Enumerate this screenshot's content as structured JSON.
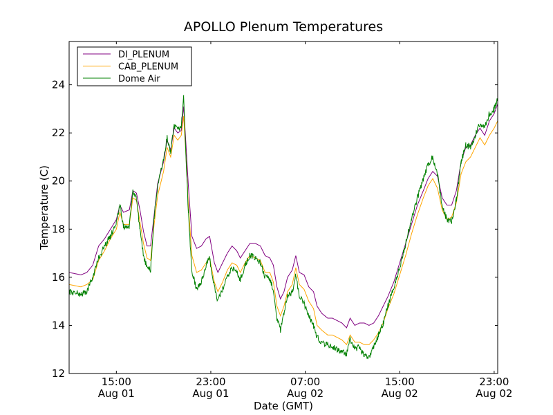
{
  "chart_data": {
    "type": "line",
    "title": "APOLLO Plenum Temperatures",
    "xlabel": "Date (GMT)",
    "ylabel": "Temperature (C)",
    "x_unit": "hours since Aug 01 11:00 GMT",
    "xlim": [
      0,
      36.3
    ],
    "ylim": [
      12,
      25.8
    ],
    "y_ticks": [
      12,
      14,
      16,
      18,
      20,
      22,
      24
    ],
    "x_ticks": [
      {
        "x": 4,
        "line1": "15:00",
        "line2": "Aug 01"
      },
      {
        "x": 12,
        "line1": "23:00",
        "line2": "Aug 01"
      },
      {
        "x": 20,
        "line1": "07:00",
        "line2": "Aug 02"
      },
      {
        "x": 28,
        "line1": "15:00",
        "line2": "Aug 02"
      },
      {
        "x": 36,
        "line1": "23:00",
        "line2": "Aug 02"
      }
    ],
    "legend_position": "top-left",
    "series": [
      {
        "name": "DI_PLENUM",
        "color": "#800080",
        "noise": 0,
        "points": [
          [
            0,
            16.2
          ],
          [
            1,
            16.1
          ],
          [
            1.5,
            16.2
          ],
          [
            2,
            16.5
          ],
          [
            2.5,
            17.3
          ],
          [
            3,
            17.6
          ],
          [
            3.5,
            18.0
          ],
          [
            4,
            18.4
          ],
          [
            4.3,
            19.0
          ],
          [
            4.6,
            18.7
          ],
          [
            5.1,
            18.8
          ],
          [
            5.4,
            19.6
          ],
          [
            5.7,
            19.5
          ],
          [
            6,
            18.8
          ],
          [
            6.3,
            17.9
          ],
          [
            6.6,
            17.3
          ],
          [
            6.9,
            17.3
          ],
          [
            7.2,
            18.6
          ],
          [
            7.5,
            19.9
          ],
          [
            8,
            20.8
          ],
          [
            8.3,
            21.7
          ],
          [
            8.6,
            21.3
          ],
          [
            8.9,
            22.2
          ],
          [
            9.2,
            22.0
          ],
          [
            9.5,
            22.1
          ],
          [
            9.7,
            23.1
          ],
          [
            9.9,
            21.5
          ],
          [
            10.1,
            19.8
          ],
          [
            10.4,
            17.7
          ],
          [
            10.8,
            17.2
          ],
          [
            11.2,
            17.3
          ],
          [
            11.6,
            17.6
          ],
          [
            11.9,
            17.7
          ],
          [
            12.3,
            16.6
          ],
          [
            12.6,
            16.2
          ],
          [
            13,
            16.6
          ],
          [
            13.4,
            17.0
          ],
          [
            13.8,
            17.3
          ],
          [
            14.2,
            17.1
          ],
          [
            14.5,
            16.8
          ],
          [
            14.9,
            17.1
          ],
          [
            15.3,
            17.4
          ],
          [
            15.8,
            17.4
          ],
          [
            16.2,
            17.3
          ],
          [
            16.6,
            16.9
          ],
          [
            17,
            16.8
          ],
          [
            17.3,
            16.5
          ],
          [
            17.6,
            15.6
          ],
          [
            17.9,
            15.1
          ],
          [
            18.2,
            15.4
          ],
          [
            18.5,
            16.0
          ],
          [
            18.9,
            16.3
          ],
          [
            19.2,
            16.9
          ],
          [
            19.5,
            16.2
          ],
          [
            19.9,
            16.1
          ],
          [
            20.3,
            15.6
          ],
          [
            20.7,
            15.4
          ],
          [
            21,
            14.8
          ],
          [
            21.4,
            14.5
          ],
          [
            21.9,
            14.3
          ],
          [
            22.3,
            14.3
          ],
          [
            22.7,
            14.2
          ],
          [
            23.1,
            14.1
          ],
          [
            23.5,
            13.9
          ],
          [
            23.8,
            14.3
          ],
          [
            24.2,
            14.0
          ],
          [
            24.6,
            14.1
          ],
          [
            25,
            14.1
          ],
          [
            25.4,
            14.0
          ],
          [
            25.8,
            14.1
          ],
          [
            26.2,
            14.4
          ],
          [
            26.6,
            14.8
          ],
          [
            27,
            15.2
          ],
          [
            27.5,
            15.8
          ],
          [
            28,
            16.6
          ],
          [
            28.5,
            17.4
          ],
          [
            29,
            18.2
          ],
          [
            29.5,
            19.0
          ],
          [
            30,
            19.6
          ],
          [
            30.4,
            20.1
          ],
          [
            30.8,
            20.4
          ],
          [
            31.2,
            20.2
          ],
          [
            31.6,
            19.3
          ],
          [
            32,
            19.0
          ],
          [
            32.4,
            19.0
          ],
          [
            32.8,
            19.6
          ],
          [
            33.2,
            20.8
          ],
          [
            33.6,
            21.4
          ],
          [
            34,
            21.5
          ],
          [
            34.4,
            21.9
          ],
          [
            34.8,
            22.2
          ],
          [
            35.2,
            21.9
          ],
          [
            35.6,
            22.5
          ],
          [
            36.0,
            22.8
          ],
          [
            36.3,
            23.2
          ]
        ]
      },
      {
        "name": "CAB_PLENUM",
        "color": "#ffa500",
        "noise": 0,
        "points": [
          [
            0,
            15.7
          ],
          [
            1,
            15.6
          ],
          [
            1.5,
            15.7
          ],
          [
            2,
            15.9
          ],
          [
            2.5,
            16.7
          ],
          [
            3,
            17.1
          ],
          [
            3.5,
            17.6
          ],
          [
            4,
            18.0
          ],
          [
            4.3,
            18.7
          ],
          [
            4.6,
            18.2
          ],
          [
            5.1,
            18.2
          ],
          [
            5.4,
            19.3
          ],
          [
            5.7,
            19.2
          ],
          [
            6,
            18.3
          ],
          [
            6.3,
            17.4
          ],
          [
            6.6,
            16.8
          ],
          [
            6.9,
            16.7
          ],
          [
            7.2,
            18.2
          ],
          [
            7.5,
            19.4
          ],
          [
            8,
            20.4
          ],
          [
            8.3,
            21.4
          ],
          [
            8.6,
            21.0
          ],
          [
            8.9,
            21.9
          ],
          [
            9.2,
            21.7
          ],
          [
            9.5,
            21.9
          ],
          [
            9.7,
            22.7
          ],
          [
            9.9,
            21.0
          ],
          [
            10.1,
            19.0
          ],
          [
            10.4,
            16.9
          ],
          [
            10.8,
            16.2
          ],
          [
            11.2,
            16.3
          ],
          [
            11.6,
            16.6
          ],
          [
            11.9,
            16.8
          ],
          [
            12.3,
            15.8
          ],
          [
            12.6,
            15.4
          ],
          [
            13,
            15.8
          ],
          [
            13.4,
            16.3
          ],
          [
            13.8,
            16.6
          ],
          [
            14.2,
            16.5
          ],
          [
            14.5,
            16.2
          ],
          [
            14.9,
            16.6
          ],
          [
            15.3,
            16.9
          ],
          [
            15.8,
            16.8
          ],
          [
            16.2,
            16.7
          ],
          [
            16.6,
            16.2
          ],
          [
            17,
            16.2
          ],
          [
            17.3,
            15.8
          ],
          [
            17.6,
            14.8
          ],
          [
            17.9,
            14.4
          ],
          [
            18.2,
            14.8
          ],
          [
            18.5,
            15.4
          ],
          [
            18.9,
            15.7
          ],
          [
            19.2,
            16.4
          ],
          [
            19.5,
            15.7
          ],
          [
            19.9,
            15.5
          ],
          [
            20.3,
            15.0
          ],
          [
            20.7,
            14.7
          ],
          [
            21,
            14.0
          ],
          [
            21.4,
            13.8
          ],
          [
            21.9,
            13.6
          ],
          [
            22.3,
            13.6
          ],
          [
            22.7,
            13.5
          ],
          [
            23.1,
            13.4
          ],
          [
            23.5,
            13.2
          ],
          [
            23.8,
            13.6
          ],
          [
            24.2,
            13.3
          ],
          [
            24.6,
            13.3
          ],
          [
            25,
            13.2
          ],
          [
            25.4,
            13.2
          ],
          [
            25.8,
            13.4
          ],
          [
            26.2,
            13.7
          ],
          [
            26.6,
            14.1
          ],
          [
            27,
            14.7
          ],
          [
            27.5,
            15.3
          ],
          [
            28,
            16.1
          ],
          [
            28.5,
            16.9
          ],
          [
            29,
            17.8
          ],
          [
            29.5,
            18.6
          ],
          [
            30,
            19.3
          ],
          [
            30.4,
            19.8
          ],
          [
            30.8,
            20.1
          ],
          [
            31.2,
            19.7
          ],
          [
            31.6,
            18.8
          ],
          [
            32,
            18.4
          ],
          [
            32.4,
            18.5
          ],
          [
            32.8,
            19.1
          ],
          [
            33.2,
            20.3
          ],
          [
            33.6,
            20.8
          ],
          [
            34,
            21.0
          ],
          [
            34.4,
            21.4
          ],
          [
            34.8,
            21.8
          ],
          [
            35.2,
            21.5
          ],
          [
            35.6,
            21.9
          ],
          [
            36.0,
            22.2
          ],
          [
            36.3,
            22.5
          ]
        ]
      },
      {
        "name": "Dome Air",
        "color": "#008000",
        "noise": 0.13,
        "points": [
          [
            0,
            15.4
          ],
          [
            1,
            15.3
          ],
          [
            1.5,
            15.4
          ],
          [
            2,
            16.0
          ],
          [
            2.5,
            16.8
          ],
          [
            3,
            17.3
          ],
          [
            3.5,
            17.7
          ],
          [
            4,
            18.3
          ],
          [
            4.3,
            19.0
          ],
          [
            4.6,
            18.1
          ],
          [
            5.1,
            18.1
          ],
          [
            5.4,
            19.6
          ],
          [
            5.7,
            19.3
          ],
          [
            6,
            17.9
          ],
          [
            6.3,
            16.9
          ],
          [
            6.6,
            16.4
          ],
          [
            6.9,
            16.3
          ],
          [
            7.2,
            18.5
          ],
          [
            7.5,
            19.8
          ],
          [
            8,
            20.9
          ],
          [
            8.3,
            21.8
          ],
          [
            8.6,
            21.2
          ],
          [
            8.9,
            22.3
          ],
          [
            9.2,
            22.1
          ],
          [
            9.5,
            22.3
          ],
          [
            9.7,
            23.5
          ],
          [
            9.9,
            21.0
          ],
          [
            10.1,
            18.7
          ],
          [
            10.4,
            16.2
          ],
          [
            10.8,
            15.5
          ],
          [
            11.2,
            15.8
          ],
          [
            11.6,
            16.5
          ],
          [
            11.9,
            16.8
          ],
          [
            12.3,
            15.6
          ],
          [
            12.6,
            15.0
          ],
          [
            13,
            15.5
          ],
          [
            13.4,
            16.0
          ],
          [
            13.8,
            16.4
          ],
          [
            14.2,
            16.2
          ],
          [
            14.5,
            15.9
          ],
          [
            14.9,
            16.5
          ],
          [
            15.3,
            16.9
          ],
          [
            15.8,
            16.8
          ],
          [
            16.2,
            16.6
          ],
          [
            16.6,
            16.0
          ],
          [
            17,
            15.9
          ],
          [
            17.3,
            15.5
          ],
          [
            17.6,
            14.3
          ],
          [
            17.9,
            13.8
          ],
          [
            18.2,
            14.5
          ],
          [
            18.5,
            15.2
          ],
          [
            18.9,
            15.4
          ],
          [
            19.2,
            16.1
          ],
          [
            19.5,
            15.2
          ],
          [
            19.9,
            14.9
          ],
          [
            20.3,
            14.4
          ],
          [
            20.7,
            14.0
          ],
          [
            21,
            13.5
          ],
          [
            21.4,
            13.3
          ],
          [
            21.9,
            13.2
          ],
          [
            22.3,
            13.1
          ],
          [
            22.7,
            13.0
          ],
          [
            23.1,
            12.9
          ],
          [
            23.5,
            12.8
          ],
          [
            23.8,
            13.4
          ],
          [
            24.2,
            13.0
          ],
          [
            24.6,
            13.1
          ],
          [
            25,
            12.7
          ],
          [
            25.4,
            12.7
          ],
          [
            25.8,
            13.1
          ],
          [
            26.2,
            13.6
          ],
          [
            26.6,
            14.1
          ],
          [
            27,
            14.8
          ],
          [
            27.5,
            15.6
          ],
          [
            28,
            16.4
          ],
          [
            28.5,
            17.4
          ],
          [
            29,
            18.4
          ],
          [
            29.5,
            19.3
          ],
          [
            30,
            20.1
          ],
          [
            30.4,
            20.7
          ],
          [
            30.8,
            21.0
          ],
          [
            31.2,
            20.3
          ],
          [
            31.6,
            18.9
          ],
          [
            32,
            18.4
          ],
          [
            32.4,
            18.3
          ],
          [
            32.8,
            19.2
          ],
          [
            33.2,
            20.8
          ],
          [
            33.6,
            21.5
          ],
          [
            34,
            21.4
          ],
          [
            34.4,
            21.9
          ],
          [
            34.8,
            22.4
          ],
          [
            35.2,
            22.2
          ],
          [
            35.6,
            22.8
          ],
          [
            36.0,
            23.0
          ],
          [
            36.3,
            23.4
          ]
        ]
      }
    ]
  }
}
